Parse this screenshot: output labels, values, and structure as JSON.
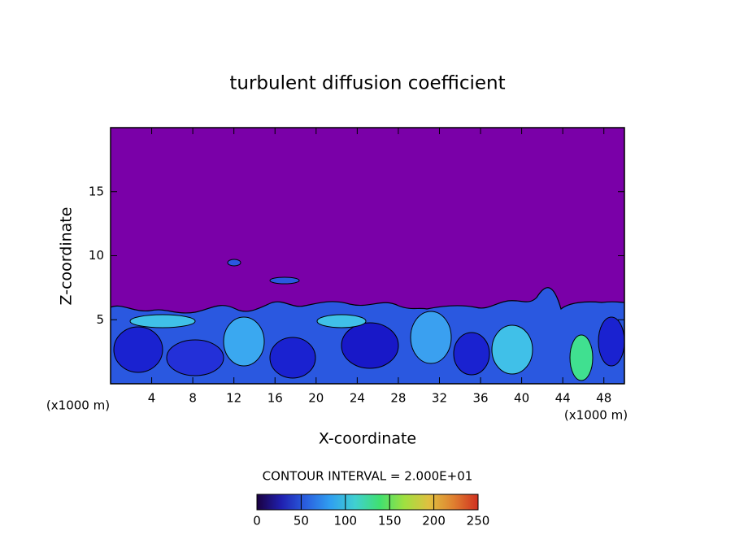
{
  "chart_data": {
    "type": "contour",
    "title": "turbulent diffusion coefficient",
    "xlabel": "X-coordinate",
    "ylabel": "Z-coordinate",
    "annotations": [
      "(x1000 m)",
      "(x1000 m)",
      "CONTOUR INTERVAL = 2.000E+01"
    ],
    "xlim": [
      0,
      50
    ],
    "xticks": [
      4,
      8,
      12,
      16,
      20,
      24,
      28,
      32,
      36,
      40,
      44,
      48
    ],
    "ylim": [
      0,
      20
    ],
    "yticks": [
      5,
      10,
      15
    ],
    "colorbar": {
      "lim": [
        0,
        250
      ],
      "ticks": [
        0,
        50,
        100,
        150,
        200,
        250
      ],
      "colors": [
        "#1a0040",
        "#2020b0",
        "#2a60e0",
        "#30a0f0",
        "#40d0d0",
        "#40e070",
        "#a0e040",
        "#e0c040",
        "#e08030",
        "#d03020"
      ]
    }
  }
}
